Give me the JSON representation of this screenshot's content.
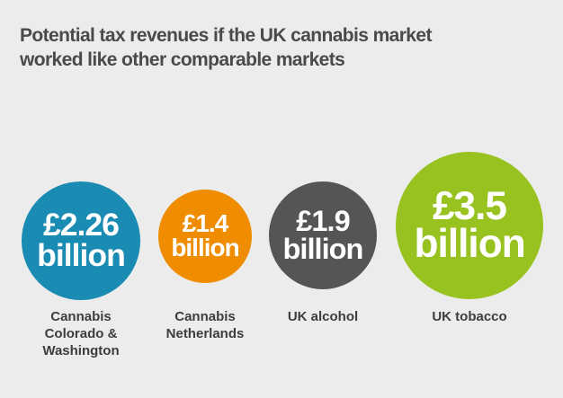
{
  "chart_data": {
    "type": "bubble",
    "title": "Potential tax revenues if the UK cannabis market worked like other comparable markets",
    "categories": [
      "Cannabis Colorado & Washington",
      "Cannabis Netherlands",
      "UK alcohol",
      "UK tobacco"
    ],
    "values": [
      2.26,
      1.4,
      1.9,
      3.5
    ],
    "value_labels": [
      "£2.26 billion",
      "£1.4 billion",
      "£1.9 billion",
      "£3.5 billion"
    ],
    "colors": [
      "#1a8bb3",
      "#f08c00",
      "#555555",
      "#98c21f"
    ]
  }
}
